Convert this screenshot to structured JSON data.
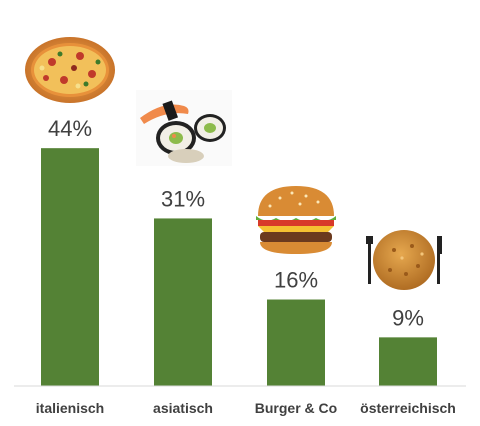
{
  "chart_data": {
    "type": "bar",
    "title": "",
    "xlabel": "",
    "ylabel": "",
    "categories": [
      "italienisch",
      "asiatisch",
      "Burger & Co",
      "österreichisch"
    ],
    "values": [
      44,
      31,
      16,
      9
    ],
    "value_labels": [
      "44%",
      "31%",
      "16%",
      "9%"
    ],
    "unit": "%",
    "ylim": [
      0,
      50
    ],
    "grid": false,
    "legend": "none",
    "bar_color": "#548235",
    "category_icons": [
      "pizza-icon",
      "sushi-icon",
      "burger-icon",
      "schnitzel-icon"
    ]
  }
}
